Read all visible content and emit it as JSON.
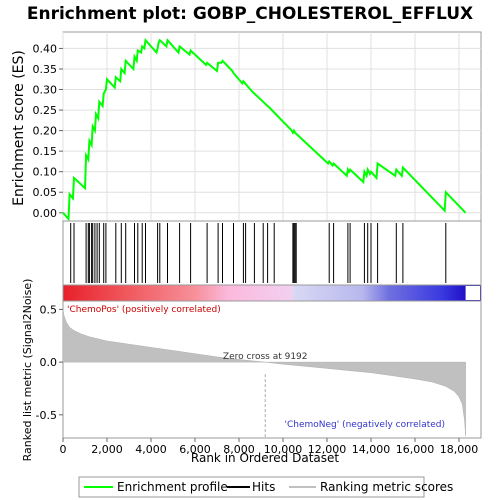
{
  "chart_data": {
    "type": "line",
    "title": "Enrichment plot: GOBP_CHOLESTEROL_EFFLUX",
    "top_panel": {
      "ylabel": "Enrichment score (ES)",
      "ylim": [
        -0.02,
        0.44
      ],
      "yticks": [
        "0.00",
        "0.05",
        "0.10",
        "0.15",
        "0.20",
        "0.25",
        "0.30",
        "0.35",
        "0.40"
      ],
      "grid": true,
      "series": [
        {
          "name": "Enrichment profile",
          "color": "#00ff00",
          "x": [
            0,
            250,
            300,
            450,
            500,
            1000,
            1050,
            1150,
            1200,
            1300,
            1350,
            1450,
            1500,
            1600,
            1650,
            1800,
            1850,
            1950,
            2000,
            2350,
            2400,
            2600,
            2650,
            2800,
            2850,
            3200,
            3250,
            3350,
            3400,
            3550,
            3600,
            3700,
            3750,
            4250,
            4300,
            4350,
            4400,
            4700,
            4750,
            5250,
            5300,
            5750,
            5800,
            6500,
            6550,
            7000,
            7050,
            7200,
            7250,
            7700,
            7750,
            8150,
            8200,
            8600,
            8700,
            9000,
            9100,
            9300,
            9400,
            10400,
            10450,
            10500,
            10550,
            12050,
            12100,
            12250,
            12300,
            12900,
            12950,
            13000,
            13050,
            13650,
            13700,
            13800,
            13850,
            13950,
            14000,
            14250,
            14300,
            15100,
            15150,
            15400,
            15450,
            17350,
            17400,
            18300
          ],
          "y": [
            0.0,
            -0.015,
            0.045,
            0.035,
            0.085,
            0.06,
            0.14,
            0.13,
            0.175,
            0.165,
            0.21,
            0.2,
            0.24,
            0.23,
            0.27,
            0.26,
            0.29,
            0.3,
            0.325,
            0.305,
            0.33,
            0.32,
            0.35,
            0.34,
            0.37,
            0.35,
            0.38,
            0.37,
            0.395,
            0.39,
            0.405,
            0.4,
            0.42,
            0.39,
            0.4,
            0.415,
            0.42,
            0.405,
            0.42,
            0.39,
            0.405,
            0.385,
            0.395,
            0.36,
            0.365,
            0.345,
            0.365,
            0.365,
            0.37,
            0.345,
            0.34,
            0.315,
            0.32,
            0.295,
            0.29,
            0.275,
            0.27,
            0.26,
            0.255,
            0.2,
            0.195,
            0.2,
            0.195,
            0.12,
            0.125,
            0.115,
            0.12,
            0.09,
            0.105,
            0.1,
            0.105,
            0.075,
            0.1,
            0.09,
            0.105,
            0.095,
            0.1,
            0.085,
            0.12,
            0.09,
            0.105,
            0.09,
            0.11,
            0.005,
            0.05,
            0.0
          ]
        }
      ]
    },
    "hits": [
      350,
      500,
      1050,
      1150,
      1200,
      1300,
      1350,
      1450,
      1550,
      1650,
      1850,
      1950,
      2400,
      2650,
      2850,
      3250,
      3400,
      3600,
      3750,
      4300,
      4400,
      4750,
      5300,
      5800,
      6550,
      7050,
      7250,
      7750,
      8200,
      8300,
      8700,
      9100,
      9300,
      9600,
      10450,
      10500,
      10550,
      10600,
      12100,
      12300,
      12950,
      13050,
      13700,
      13850,
      14000,
      14300,
      15150,
      15450,
      17400
    ],
    "colorbar": {
      "stops": [
        {
          "x": 0,
          "color": "#e8202a"
        },
        {
          "x": 3000,
          "color": "#f05a5f"
        },
        {
          "x": 6000,
          "color": "#f7909a"
        },
        {
          "x": 7500,
          "color": "#fbb9dc"
        },
        {
          "x": 10400,
          "color": "#f2d0f0"
        },
        {
          "x": 10500,
          "color": "#d8d8f4"
        },
        {
          "x": 13600,
          "color": "#b8b8ee"
        },
        {
          "x": 14800,
          "color": "#7070e0"
        },
        {
          "x": 17200,
          "color": "#3a3ae0"
        },
        {
          "x": 18300,
          "color": "#2010c8"
        }
      ]
    },
    "bottom_panel": {
      "ylabel": "Ranked list metric (Signal2Noise)",
      "xlabel": "Rank in Ordered Dataset",
      "xlim": [
        0,
        19000
      ],
      "xticks": [
        "0",
        "2,000",
        "4,000",
        "6,000",
        "8,000",
        "10,000",
        "12,000",
        "14,000",
        "16,000",
        "18,000"
      ],
      "xtick_values": [
        0,
        2000,
        4000,
        6000,
        8000,
        10000,
        12000,
        14000,
        16000,
        18000
      ],
      "ylim": [
        -0.72,
        0.58
      ],
      "yticks": [
        "0.5",
        "0.0",
        "-0.5"
      ],
      "ytick_values": [
        0.5,
        0.0,
        -0.5
      ],
      "metric_x": [
        0,
        50,
        150,
        300,
        500,
        800,
        1200,
        2000,
        3000,
        4000,
        5000,
        6000,
        7000,
        8000,
        9192,
        10000,
        11000,
        12000,
        13000,
        14000,
        15000,
        16000,
        16800,
        17400,
        17800,
        18000,
        18150,
        18250,
        18300
      ],
      "metric_y": [
        0.5,
        0.44,
        0.38,
        0.33,
        0.3,
        0.27,
        0.24,
        0.2,
        0.17,
        0.14,
        0.11,
        0.08,
        0.05,
        0.025,
        0.0,
        -0.02,
        -0.04,
        -0.06,
        -0.08,
        -0.1,
        -0.13,
        -0.16,
        -0.19,
        -0.23,
        -0.28,
        -0.33,
        -0.4,
        -0.55,
        -0.7
      ],
      "zero_cross_label": "Zero cross at 9192",
      "zero_cross_x": 9192,
      "pos_label": "'ChemoPos' (positively correlated)",
      "neg_label": "'ChemoNeg' (negatively correlated)"
    },
    "legend": {
      "items": [
        {
          "label": "Enrichment profile",
          "color": "#00ff00"
        },
        {
          "label": "Hits",
          "color": "#000000"
        },
        {
          "label": "Ranking metric scores",
          "color": "#c0c0c0"
        }
      ]
    }
  }
}
